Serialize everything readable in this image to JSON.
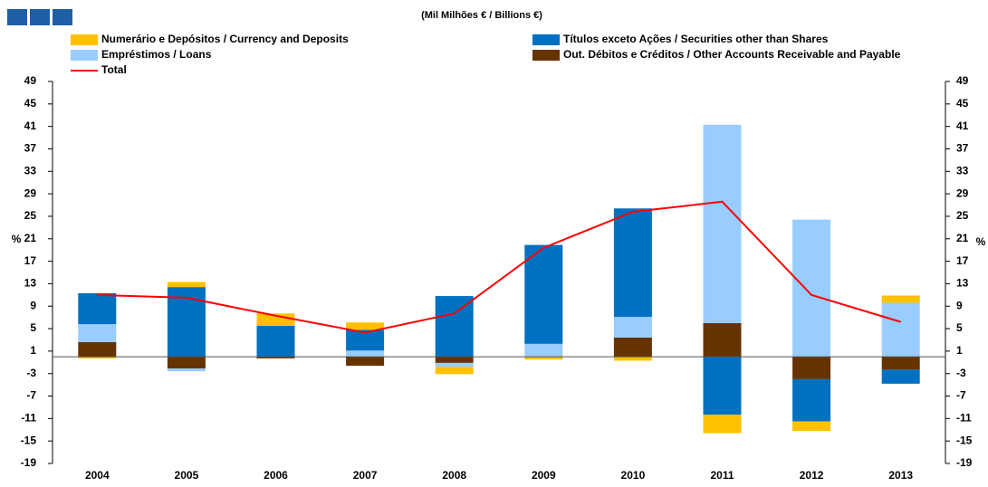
{
  "chart_data": {
    "type": "stacked-bar-line",
    "title": "(Mil Milhões € / Billions €)",
    "y_label": "%",
    "y2_label": "%",
    "categories": [
      "2004",
      "2005",
      "2006",
      "2007",
      "2008",
      "2009",
      "2010",
      "2011",
      "2012",
      "2013"
    ],
    "series": [
      {
        "name": "Numerário e Depósitos / Currency and Deposits",
        "color": "#ffc000",
        "values": [
          -0.3,
          0.9,
          2.2,
          1.3,
          -1.3,
          -0.5,
          -0.7,
          -3.3,
          -1.7,
          1.3
        ]
      },
      {
        "name": "Títulos exceto Ações / Securities other than Shares",
        "color": "#0070c0",
        "values": [
          5.5,
          12.4,
          5.5,
          3.7,
          10.8,
          17.6,
          19.3,
          -10.3,
          -7.5,
          -2.5
        ]
      },
      {
        "name": "Empréstimos / Loans",
        "color": "#99ccff",
        "values": [
          3.2,
          -0.5,
          0,
          1.1,
          -0.7,
          2.3,
          3.7,
          35.3,
          24.4,
          9.6
        ]
      },
      {
        "name": "Out. Débitos e Créditos / Other Accounts Receivable and Payable",
        "color": "#663300",
        "values": [
          2.6,
          -2.1,
          -0.3,
          -1.6,
          -1.1,
          0,
          3.4,
          6.0,
          -4.0,
          -2.3
        ]
      },
      {
        "name": "Total",
        "color": "#ff0000",
        "line": true,
        "values": [
          11.0,
          10.5,
          7.3,
          4.3,
          7.7,
          19.4,
          25.8,
          27.6,
          11.0,
          6.2
        ]
      }
    ],
    "ylim": [
      -19,
      49
    ],
    "yticks": [
      -19,
      -15,
      -11,
      -7,
      -3,
      1,
      5,
      9,
      13,
      17,
      21,
      25,
      29,
      33,
      37,
      41,
      45,
      49
    ],
    "y2lim": [
      -19,
      49
    ],
    "y2ticks": [
      -19,
      -15,
      -11,
      -7,
      -3,
      1,
      5,
      9,
      13,
      17,
      21,
      25,
      29,
      33,
      37,
      41,
      45,
      49
    ]
  }
}
